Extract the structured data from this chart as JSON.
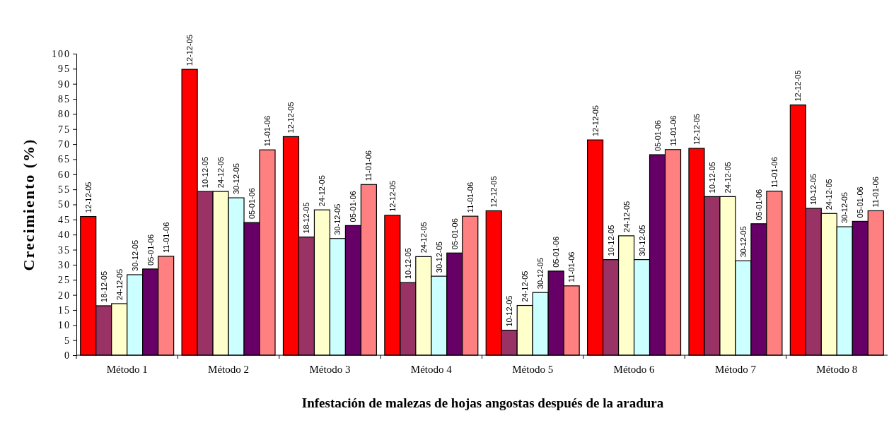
{
  "chart_data": {
    "type": "bar",
    "xlabel": "Infestación de malezas de hojas angostas después de la aradura",
    "ylabel": "Crecimiento (%)",
    "categories": [
      "Método 1",
      "Método 2",
      "Método 3",
      "Método 4",
      "Método 5",
      "Método 6",
      "Método 7",
      "Método 8"
    ],
    "ylim": [
      0,
      100
    ],
    "yticks": [
      0,
      5,
      10,
      15,
      20,
      25,
      30,
      35,
      40,
      45,
      50,
      55,
      60,
      65,
      70,
      75,
      80,
      85,
      90,
      95,
      100
    ],
    "grid": false,
    "series": [
      {
        "color": "#ff0000",
        "values": [
          46,
          94.8,
          72.5,
          46.4,
          47.9,
          71.4,
          68.6,
          83
        ],
        "value_labels": [
          "12-12-05",
          "12-12-05",
          "12-12-05",
          "12-12-05",
          "12-12-05",
          "12-12-05",
          "12-12-05",
          "12-12-05"
        ]
      },
      {
        "color": "#993366",
        "values": [
          16.4,
          54.3,
          39.2,
          24.1,
          8.3,
          31.7,
          52.6,
          48.7
        ],
        "value_labels": [
          "18-12-05",
          "10-12-05",
          "18-12-05",
          "10-12-05",
          "10-12-05",
          "10-12-05",
          "10-12-05",
          "10-12-05"
        ]
      },
      {
        "color": "#ffffcc",
        "values": [
          17.1,
          54.3,
          48.2,
          32.7,
          16.5,
          39.6,
          52.6,
          47
        ],
        "value_labels": [
          "24-12-05",
          "24-12-05",
          "24-12-05",
          "24-12-05",
          "24-12-05",
          "24-12-05",
          "24-12-05",
          "24-12-05"
        ]
      },
      {
        "color": "#ccffff",
        "values": [
          26.7,
          52.2,
          38.7,
          26.2,
          20.8,
          31.7,
          31.3,
          42.6
        ],
        "value_labels": [
          "30-12-05",
          "30-12-05",
          "30-12-05",
          "30-12-05",
          "30-12-05",
          "30-12-05",
          "30-12-05",
          "30-12-05"
        ]
      },
      {
        "color": "#660066",
        "values": [
          28.6,
          44,
          43,
          33.9,
          27.9,
          66.5,
          43.6,
          44.4
        ],
        "value_labels": [
          "05-01-06",
          "05-01-06",
          "05-01-06",
          "05-01-06",
          "05-01-06",
          "05-01-06",
          "05-01-06",
          "05-01-06"
        ]
      },
      {
        "color": "#ff8080",
        "values": [
          32.8,
          68.1,
          56.6,
          46.1,
          23,
          68.2,
          54.4,
          47.9
        ],
        "value_labels": [
          "11-01-06",
          "11-01-06",
          "11-01-06",
          "11-01-06",
          "11-01-06",
          "11-01-06",
          "11-01-06",
          "11-01-06"
        ]
      }
    ]
  }
}
